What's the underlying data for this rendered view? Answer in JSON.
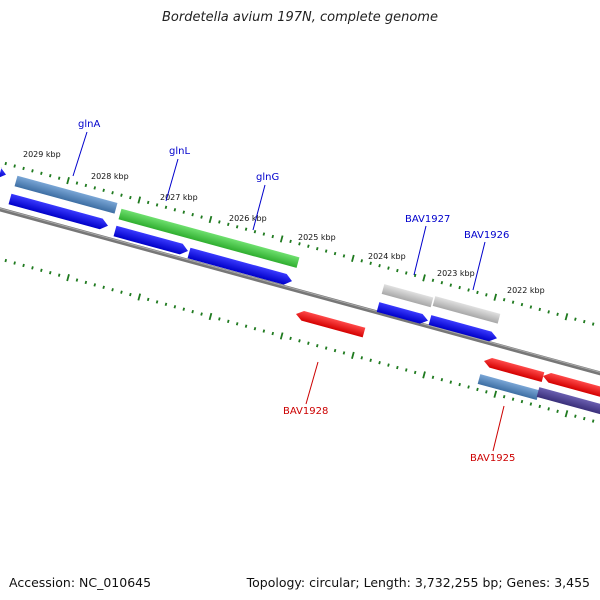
{
  "title": "Bordetella avium 197N, complete genome",
  "footer": {
    "accession": "Accession: NC_010645",
    "summary": "Topology: circular; Length: 3,732,255 bp; Genes: 3,455"
  },
  "kbp_labels": [
    "2029 kbp",
    "2028 kbp",
    "2027 kbp",
    "2026 kbp",
    "2025 kbp",
    "2024 kbp",
    "2023 kbp",
    "2022 kbp"
  ],
  "gene_labels": [
    {
      "name": "glnA",
      "color": "#0000cc"
    },
    {
      "name": "glnL",
      "color": "#0000cc"
    },
    {
      "name": "glnG",
      "color": "#0000cc"
    },
    {
      "name": "BAV1927",
      "color": "#0000cc"
    },
    {
      "name": "BAV1926",
      "color": "#0000cc"
    },
    {
      "name": "BAV1928",
      "color": "#cc0000"
    },
    {
      "name": "BAV1925",
      "color": "#cc0000"
    }
  ],
  "colors": {
    "forward_cds": "#0000ee",
    "reverse_cds": "#ee0000",
    "gene_blue": "#4a7fb8",
    "gene_green": "#3dc43d",
    "gene_gray": "#bdbdbd",
    "gene_purple": "#4b3f8f",
    "backbone": "#777777",
    "tick": "#1f7a1f"
  }
}
